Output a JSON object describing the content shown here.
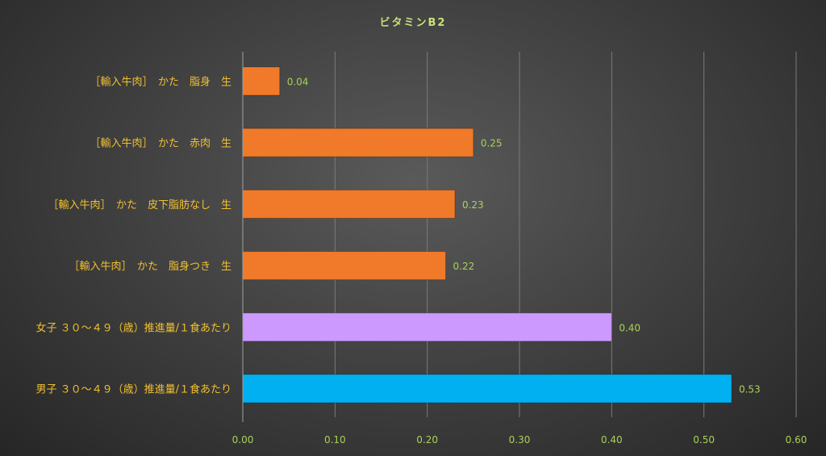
{
  "chart_data": {
    "type": "bar",
    "orientation": "horizontal",
    "title": "ビタミンB2",
    "categories": [
      "［輸入牛肉］　かた　脂身　生",
      "［輸入牛肉］　かた　赤肉　生",
      "［輸入牛肉］　かた　皮下脂肪なし　生",
      "［輸入牛肉］　かた　脂身つき　生",
      "女子 ３０～４９（歳）推進量/１食あたり",
      "男子 ３０～４９（歳）推進量/１食あたり"
    ],
    "values": [
      0.04,
      0.25,
      0.23,
      0.22,
      0.4,
      0.53
    ],
    "data_labels": [
      "0.04",
      "0.25",
      "0.23",
      "0.22",
      "0.40",
      "0.53"
    ],
    "bar_colors": [
      "#f07a2a",
      "#f07a2a",
      "#f07a2a",
      "#f07a2a",
      "#cc99ff",
      "#00b0f0"
    ],
    "xlim": [
      0,
      0.6
    ],
    "x_ticks": [
      0,
      0.1,
      0.2,
      0.3,
      0.4,
      0.5,
      0.6
    ],
    "x_tick_labels": [
      "0.00",
      "0.10",
      "0.20",
      "0.30",
      "0.40",
      "0.50",
      "0.60"
    ],
    "grid": true,
    "legend": "none"
  }
}
